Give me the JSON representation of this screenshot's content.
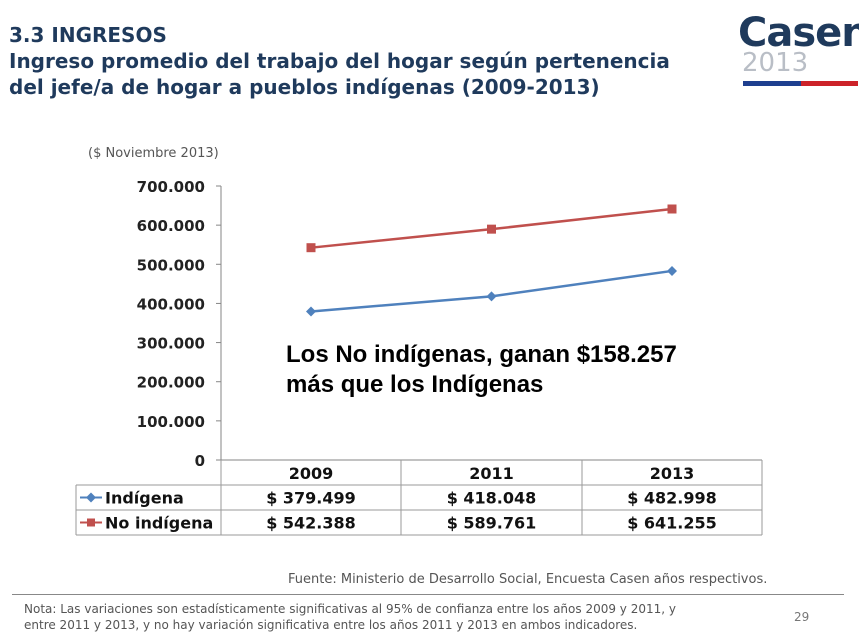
{
  "header": {
    "section": "3.3 INGRESOS",
    "subtitle_line1": "Ingreso promedio del trabajo del hogar según pertenencia",
    "subtitle_line2": "del jefe/a de hogar a pueblos indígenas (2009-2013)"
  },
  "logo": {
    "word": "Casen",
    "year": "2013",
    "bar_colors": [
      "#1e3f8f",
      "#cc2229"
    ]
  },
  "callout": {
    "line1": "Los No indígenas, ganan $158.257",
    "line2": "más que los Indígenas"
  },
  "footer": {
    "source": "Fuente: Ministerio de Desarrollo Social, Encuesta Casen años respectivos.",
    "note": "Nota: Las variaciones son estadísticamente significativas al 95% de confianza entre los años 2009 y 2011, y",
    "note_continuation": "entre 2011 y 2013, y no hay variación significativa entre los años 2011 y 2013 en ambos indicadores.",
    "page_number": "29"
  },
  "chart_data": {
    "type": "line",
    "unit_label": "($  Noviembre 2013)",
    "categories": [
      "2009",
      "2011",
      "2013"
    ],
    "ylim": [
      0,
      700000
    ],
    "yticks": [
      {
        "value": 0,
        "label": "0"
      },
      {
        "value": 100000,
        "label": "100.000"
      },
      {
        "value": 200000,
        "label": "200.000"
      },
      {
        "value": 300000,
        "label": "300.000"
      },
      {
        "value": 400000,
        "label": "400.000"
      },
      {
        "value": 500000,
        "label": "500.000"
      },
      {
        "value": 600000,
        "label": "600.000"
      },
      {
        "value": 700000,
        "label": "700.000"
      }
    ],
    "series": [
      {
        "name": "Indígena",
        "color": "#4f81bd",
        "marker": "diamond",
        "values": [
          379499,
          418048,
          482998
        ],
        "labels": [
          "$ 379.499",
          "$ 418.048",
          "$ 482.998"
        ]
      },
      {
        "name": "No indígena",
        "color": "#c0504d",
        "marker": "square",
        "values": [
          542388,
          589761,
          641255
        ],
        "labels": [
          "$ 542.388",
          "$ 589.761",
          "$ 641.255"
        ]
      }
    ],
    "gridlines": false,
    "data_table": true
  }
}
